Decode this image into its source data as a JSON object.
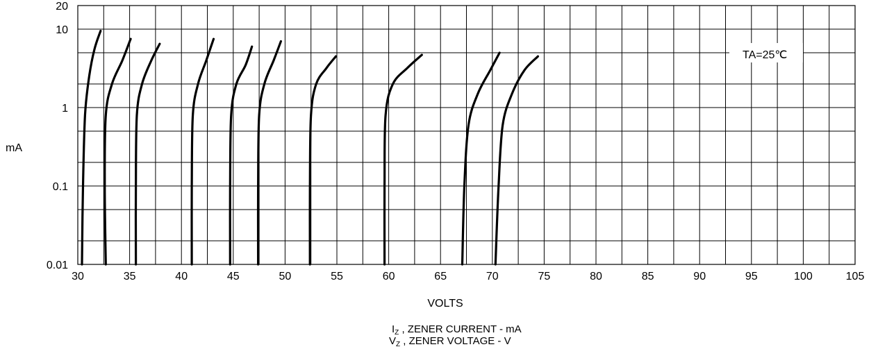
{
  "chart_data": {
    "type": "line",
    "y_scale": "log",
    "ylabel": "mA",
    "xlabel": "VOLTS",
    "x_ticks": [
      30,
      35,
      40,
      45,
      50,
      55,
      60,
      65,
      70,
      75,
      80,
      85,
      90,
      95,
      100,
      105
    ],
    "y_ticks": [
      {
        "value": 0.01,
        "label": "0.01"
      },
      {
        "value": 0.1,
        "label": "0.1"
      },
      {
        "value": 1,
        "label": "1"
      },
      {
        "value": 10,
        "label": "10"
      },
      {
        "value": 20,
        "label": "20"
      }
    ],
    "xlim": [
      30,
      105
    ],
    "ylim": [
      0.01,
      20
    ],
    "grid": true,
    "annotation": "TA=25℃",
    "caption": {
      "line1_symbol": "I",
      "line1_sub": "Z",
      "line1_text": " , ZENER CURRENT - mA",
      "line2_symbol": "V",
      "line2_sub": "Z",
      "line2_text": " , ZENER VOLTAGE  -  V"
    },
    "series": [
      {
        "x": [
          30.4,
          30.5,
          30.7,
          31.1,
          31.6,
          32.2
        ],
        "y": [
          0.01,
          0.1,
          0.8,
          2.5,
          5.5,
          9.5
        ]
      },
      {
        "x": [
          32.7,
          32.6,
          32.7,
          33.3,
          34.3,
          35.1
        ],
        "y": [
          0.01,
          0.1,
          0.8,
          2.0,
          4.0,
          7.5
        ]
      },
      {
        "x": [
          35.6,
          35.6,
          35.7,
          36.2,
          37.1,
          37.9
        ],
        "y": [
          0.01,
          0.1,
          0.8,
          2.0,
          4.0,
          6.5
        ]
      },
      {
        "x": [
          41.0,
          41.0,
          41.1,
          41.6,
          42.4,
          43.1
        ],
        "y": [
          0.01,
          0.1,
          0.8,
          2.0,
          4.0,
          7.5
        ]
      },
      {
        "x": [
          44.7,
          44.7,
          44.8,
          45.3,
          46.2,
          46.8
        ],
        "y": [
          0.01,
          0.1,
          0.8,
          2.0,
          3.5,
          6.0
        ]
      },
      {
        "x": [
          47.4,
          47.4,
          47.5,
          48.0,
          48.9,
          49.6
        ],
        "y": [
          0.01,
          0.1,
          0.8,
          2.0,
          4.0,
          7.0
        ]
      },
      {
        "x": [
          52.4,
          52.4,
          52.5,
          53.0,
          54.0,
          54.9
        ],
        "y": [
          0.01,
          0.1,
          0.8,
          2.0,
          3.2,
          4.5
        ]
      },
      {
        "x": [
          59.6,
          59.6,
          59.7,
          60.4,
          61.8,
          63.2
        ],
        "y": [
          0.01,
          0.1,
          0.8,
          2.0,
          3.2,
          4.7
        ]
      },
      {
        "x": [
          67.1,
          67.3,
          67.7,
          68.6,
          69.8,
          70.7
        ],
        "y": [
          0.01,
          0.1,
          0.6,
          1.5,
          3.0,
          5.0
        ]
      },
      {
        "x": [
          70.3,
          70.6,
          71.0,
          71.9,
          73.1,
          74.4
        ],
        "y": [
          0.01,
          0.1,
          0.6,
          1.5,
          3.0,
          4.5
        ]
      }
    ]
  }
}
